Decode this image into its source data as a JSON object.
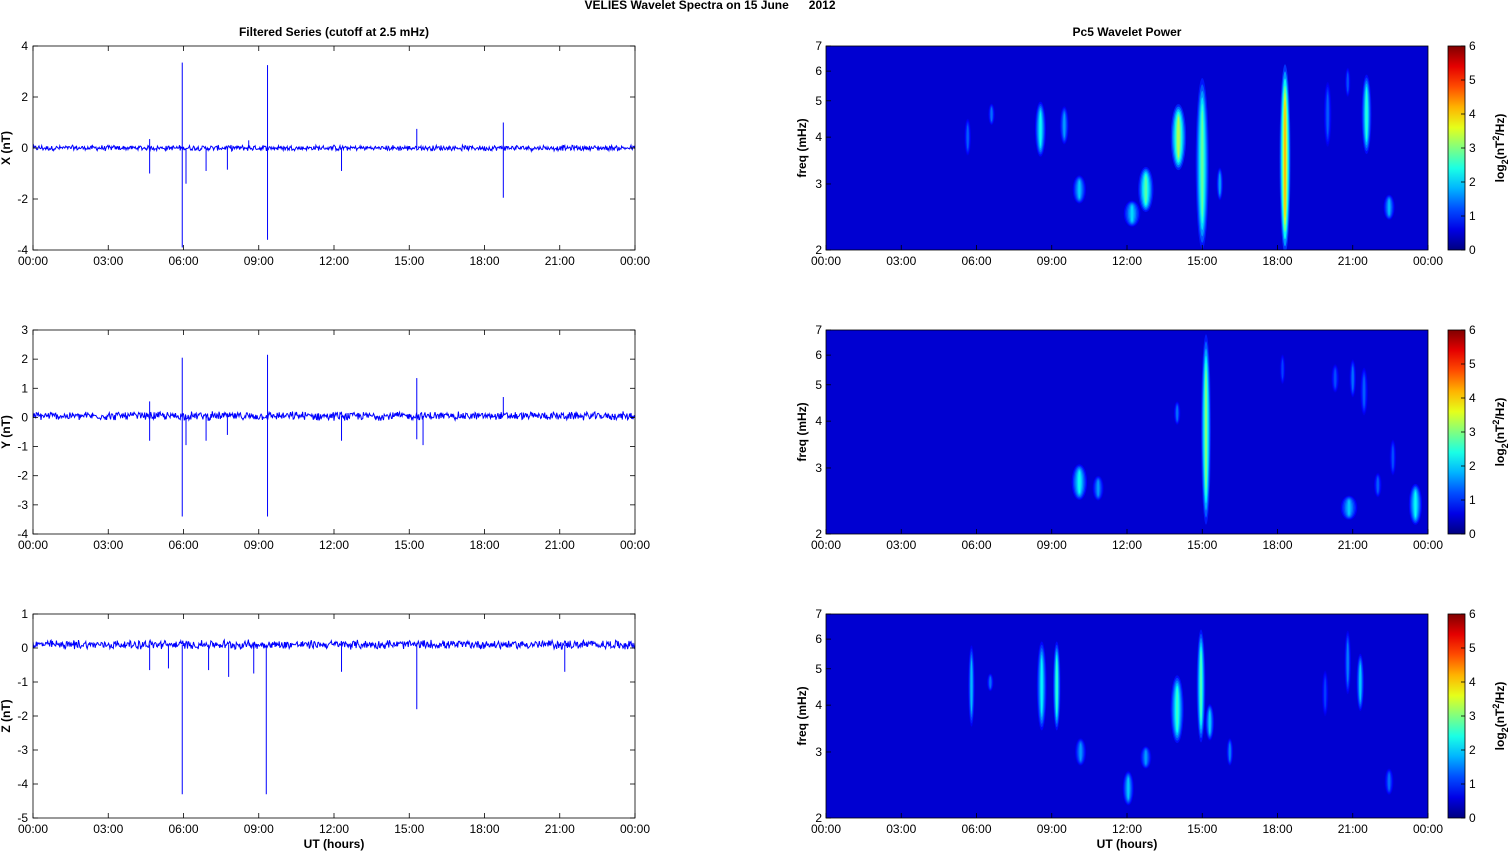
{
  "figure": {
    "title": "VELIES Wavelet Spectra on 15 June      2012",
    "left_title": "Filtered Series (cutoff at 2.5 mHz)",
    "right_title": "Pc5 Wavelet Power",
    "xlabel": "UT (hours)"
  },
  "chart_data": [
    {
      "type": "line",
      "title": "Filtered Series (cutoff at 2.5 mHz)",
      "ylabel": "X (nT)",
      "xlabel": "",
      "x_ticks": [
        "00:00",
        "03:00",
        "06:00",
        "09:00",
        "12:00",
        "15:00",
        "18:00",
        "21:00",
        "00:00"
      ],
      "xlim": [
        0,
        24
      ],
      "ylim": [
        -4,
        4
      ],
      "y_ticks": [
        -4,
        -2,
        0,
        2,
        4
      ],
      "line_color": "#0000ff",
      "noise_amp": 0.09,
      "baseline": 0.0,
      "spikes": [
        {
          "t": 4.65,
          "v": 0.35
        },
        {
          "t": 4.65,
          "v": -1.0
        },
        {
          "t": 5.95,
          "v": 3.35
        },
        {
          "t": 5.95,
          "v": -3.9
        },
        {
          "t": 6.1,
          "v": -1.4
        },
        {
          "t": 6.9,
          "v": -0.9
        },
        {
          "t": 7.75,
          "v": -0.85
        },
        {
          "t": 8.6,
          "v": 0.3
        },
        {
          "t": 9.35,
          "v": 3.25
        },
        {
          "t": 9.35,
          "v": -3.6
        },
        {
          "t": 12.3,
          "v": -0.9
        },
        {
          "t": 15.3,
          "v": 0.75
        },
        {
          "t": 18.75,
          "v": 1.0
        },
        {
          "t": 18.75,
          "v": -1.95
        }
      ]
    },
    {
      "type": "line",
      "ylabel": "Y (nT)",
      "x_ticks": [
        "00:00",
        "03:00",
        "06:00",
        "09:00",
        "12:00",
        "15:00",
        "18:00",
        "21:00",
        "00:00"
      ],
      "xlim": [
        0,
        24
      ],
      "ylim": [
        -4,
        3
      ],
      "y_ticks": [
        -4,
        -3,
        -2,
        -1,
        0,
        1,
        2,
        3
      ],
      "line_color": "#0000ff",
      "noise_amp": 0.12,
      "baseline": 0.05,
      "spikes": [
        {
          "t": 4.65,
          "v": 0.55
        },
        {
          "t": 4.65,
          "v": -0.8
        },
        {
          "t": 5.95,
          "v": 2.05
        },
        {
          "t": 5.95,
          "v": -3.4
        },
        {
          "t": 6.1,
          "v": -0.95
        },
        {
          "t": 6.9,
          "v": -0.8
        },
        {
          "t": 7.75,
          "v": -0.6
        },
        {
          "t": 9.35,
          "v": 2.15
        },
        {
          "t": 9.35,
          "v": -3.4
        },
        {
          "t": 12.3,
          "v": -0.8
        },
        {
          "t": 15.3,
          "v": 1.35
        },
        {
          "t": 15.3,
          "v": -0.75
        },
        {
          "t": 15.55,
          "v": -0.95
        },
        {
          "t": 18.75,
          "v": 0.7
        }
      ]
    },
    {
      "type": "line",
      "ylabel": "Z (nT)",
      "xlabel": "UT (hours)",
      "x_ticks": [
        "00:00",
        "03:00",
        "06:00",
        "09:00",
        "12:00",
        "15:00",
        "18:00",
        "21:00",
        "00:00"
      ],
      "xlim": [
        0,
        24
      ],
      "ylim": [
        -5,
        1
      ],
      "y_ticks": [
        -5,
        -4,
        -3,
        -2,
        -1,
        0,
        1
      ],
      "line_color": "#0000ff",
      "noise_amp": 0.11,
      "baseline": 0.1,
      "spikes": [
        {
          "t": 4.65,
          "v": -0.65
        },
        {
          "t": 5.4,
          "v": -0.6
        },
        {
          "t": 5.95,
          "v": -4.3
        },
        {
          "t": 7.0,
          "v": -0.65
        },
        {
          "t": 7.8,
          "v": -0.85
        },
        {
          "t": 9.3,
          "v": -4.3
        },
        {
          "t": 8.8,
          "v": -0.75
        },
        {
          "t": 12.3,
          "v": -0.7
        },
        {
          "t": 15.3,
          "v": -1.8
        },
        {
          "t": 21.2,
          "v": -0.7
        }
      ]
    },
    {
      "type": "heatmap",
      "title": "Pc5 Wavelet Power",
      "ylabel": "freq (mHz)",
      "y_scale": "log",
      "ylim": [
        2,
        7
      ],
      "y_ticks": [
        2,
        3,
        4,
        5,
        6,
        7
      ],
      "xlim": [
        0,
        24
      ],
      "x_ticks": [
        "00:00",
        "03:00",
        "06:00",
        "09:00",
        "12:00",
        "15:00",
        "18:00",
        "21:00",
        "00:00"
      ],
      "colorbar_label": "log2(nT2/Hz)",
      "colorbar_ticks": [
        0,
        1,
        2,
        3,
        4,
        5,
        6
      ],
      "clim": [
        0,
        6
      ],
      "blobs": [
        {
          "t": 5.65,
          "f": 4.0,
          "df": 0.9,
          "dt": 0.06,
          "p": 0.9
        },
        {
          "t": 6.6,
          "f": 4.6,
          "df": 0.6,
          "dt": 0.06,
          "p": 1.0
        },
        {
          "t": 8.55,
          "f": 4.2,
          "df": 1.4,
          "dt": 0.1,
          "p": 2.0
        },
        {
          "t": 9.5,
          "f": 4.3,
          "df": 1.0,
          "dt": 0.08,
          "p": 1.3
        },
        {
          "t": 10.1,
          "f": 2.9,
          "df": 0.5,
          "dt": 0.12,
          "p": 1.6
        },
        {
          "t": 12.2,
          "f": 2.5,
          "df": 0.4,
          "dt": 0.15,
          "p": 1.7
        },
        {
          "t": 12.75,
          "f": 2.9,
          "df": 0.8,
          "dt": 0.14,
          "p": 2.5
        },
        {
          "t": 14.05,
          "f": 4.0,
          "df": 1.6,
          "dt": 0.14,
          "p": 3.1
        },
        {
          "t": 15.0,
          "f": 3.4,
          "df": 3.5,
          "dt": 0.12,
          "p": 2.6
        },
        {
          "t": 15.7,
          "f": 3.0,
          "df": 0.6,
          "dt": 0.06,
          "p": 1.3
        },
        {
          "t": 18.3,
          "f": 3.5,
          "df": 4.5,
          "dt": 0.1,
          "p": 4.0
        },
        {
          "t": 20.0,
          "f": 4.6,
          "df": 1.8,
          "dt": 0.07,
          "p": 0.9
        },
        {
          "t": 20.8,
          "f": 5.6,
          "df": 1.0,
          "dt": 0.05,
          "p": 0.8
        },
        {
          "t": 21.55,
          "f": 4.6,
          "df": 2.2,
          "dt": 0.09,
          "p": 2.2
        },
        {
          "t": 22.45,
          "f": 2.6,
          "df": 0.4,
          "dt": 0.1,
          "p": 1.5
        }
      ]
    },
    {
      "type": "heatmap",
      "ylabel": "freq (mHz)",
      "y_scale": "log",
      "ylim": [
        2,
        7
      ],
      "y_ticks": [
        2,
        3,
        4,
        5,
        6,
        7
      ],
      "xlim": [
        0,
        24
      ],
      "x_ticks": [
        "00:00",
        "03:00",
        "06:00",
        "09:00",
        "12:00",
        "15:00",
        "18:00",
        "21:00",
        "00:00"
      ],
      "colorbar_label": "log2(nT2/Hz)",
      "colorbar_ticks": [
        0,
        1,
        2,
        3,
        4,
        5,
        6
      ],
      "clim": [
        0,
        6
      ],
      "blobs": [
        {
          "t": 10.1,
          "f": 2.75,
          "df": 0.6,
          "dt": 0.14,
          "p": 2.0
        },
        {
          "t": 10.85,
          "f": 2.65,
          "df": 0.4,
          "dt": 0.1,
          "p": 1.3
        },
        {
          "t": 14.0,
          "f": 4.2,
          "df": 0.6,
          "dt": 0.06,
          "p": 1.0
        },
        {
          "t": 15.15,
          "f": 3.8,
          "df": 4.0,
          "dt": 0.09,
          "p": 2.8
        },
        {
          "t": 18.2,
          "f": 5.5,
          "df": 1.0,
          "dt": 0.05,
          "p": 0.7
        },
        {
          "t": 20.3,
          "f": 5.2,
          "df": 0.9,
          "dt": 0.07,
          "p": 0.8
        },
        {
          "t": 20.85,
          "f": 2.35,
          "df": 0.35,
          "dt": 0.15,
          "p": 1.6
        },
        {
          "t": 21.0,
          "f": 5.2,
          "df": 1.2,
          "dt": 0.06,
          "p": 1.0
        },
        {
          "t": 21.45,
          "f": 4.8,
          "df": 1.4,
          "dt": 0.07,
          "p": 0.9
        },
        {
          "t": 22.0,
          "f": 2.7,
          "df": 0.4,
          "dt": 0.07,
          "p": 0.9
        },
        {
          "t": 22.6,
          "f": 3.2,
          "df": 0.7,
          "dt": 0.06,
          "p": 0.8
        },
        {
          "t": 23.5,
          "f": 2.4,
          "df": 0.6,
          "dt": 0.12,
          "p": 2.0
        }
      ]
    },
    {
      "type": "heatmap",
      "ylabel": "freq (mHz)",
      "xlabel": "UT (hours)",
      "y_scale": "log",
      "ylim": [
        2,
        7
      ],
      "y_ticks": [
        2,
        3,
        4,
        5,
        6,
        7
      ],
      "xlim": [
        0,
        24
      ],
      "x_ticks": [
        "00:00",
        "03:00",
        "06:00",
        "09:00",
        "12:00",
        "15:00",
        "18:00",
        "21:00",
        "00:00"
      ],
      "colorbar_label": "log2(nT2/Hz)",
      "colorbar_ticks": [
        0,
        1,
        2,
        3,
        4,
        5,
        6
      ],
      "clim": [
        0,
        6
      ],
      "blobs": [
        {
          "t": 5.8,
          "f": 4.5,
          "df": 2.2,
          "dt": 0.06,
          "p": 1.5
        },
        {
          "t": 6.55,
          "f": 4.6,
          "df": 0.5,
          "dt": 0.06,
          "p": 1.0
        },
        {
          "t": 8.6,
          "f": 4.5,
          "df": 2.4,
          "dt": 0.09,
          "p": 1.9
        },
        {
          "t": 9.2,
          "f": 4.5,
          "df": 2.4,
          "dt": 0.07,
          "p": 2.2
        },
        {
          "t": 10.15,
          "f": 3.0,
          "df": 0.5,
          "dt": 0.1,
          "p": 1.3
        },
        {
          "t": 12.05,
          "f": 2.4,
          "df": 0.5,
          "dt": 0.1,
          "p": 1.6
        },
        {
          "t": 12.75,
          "f": 2.9,
          "df": 0.4,
          "dt": 0.1,
          "p": 1.3
        },
        {
          "t": 14.0,
          "f": 3.9,
          "df": 1.6,
          "dt": 0.12,
          "p": 2.3
        },
        {
          "t": 14.95,
          "f": 4.5,
          "df": 3.0,
          "dt": 0.08,
          "p": 2.4
        },
        {
          "t": 15.3,
          "f": 3.6,
          "df": 0.8,
          "dt": 0.08,
          "p": 1.6
        },
        {
          "t": 16.1,
          "f": 3.0,
          "df": 0.5,
          "dt": 0.06,
          "p": 1.1
        },
        {
          "t": 19.9,
          "f": 4.3,
          "df": 1.2,
          "dt": 0.06,
          "p": 0.7
        },
        {
          "t": 20.8,
          "f": 5.2,
          "df": 2.0,
          "dt": 0.06,
          "p": 1.1
        },
        {
          "t": 21.3,
          "f": 4.6,
          "df": 1.6,
          "dt": 0.07,
          "p": 1.6
        },
        {
          "t": 22.45,
          "f": 2.5,
          "df": 0.4,
          "dt": 0.08,
          "p": 1.0
        }
      ]
    }
  ]
}
